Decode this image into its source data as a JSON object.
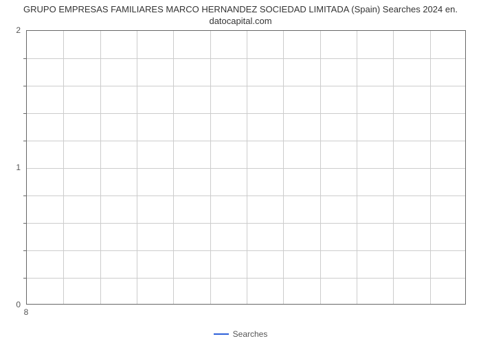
{
  "chart": {
    "type": "line",
    "title_line1": "GRUPO EMPRESAS FAMILIARES MARCO HERNANDEZ SOCIEDAD LIMITADA (Spain) Searches 2024 en.",
    "title_line2": "datocapital.com",
    "title_fontsize": 13,
    "title_color": "#333333",
    "background_color": "#ffffff",
    "plot_border_color": "#666666",
    "grid_color": "#cccccc",
    "axis_label_color": "#555555",
    "axis_label_fontsize": 12,
    "y": {
      "min": 0,
      "max": 2,
      "major_ticks": [
        0,
        1,
        2
      ],
      "minor_count_between": 4,
      "grid_rows": 10
    },
    "x": {
      "tick_labels": [
        "8"
      ],
      "grid_cols": 12
    },
    "series": [
      {
        "name": "Searches",
        "color": "#2b5fd9",
        "line_width": 2,
        "points": []
      }
    ],
    "legend": {
      "position": "bottom-center",
      "items": [
        {
          "label": "Searches",
          "color": "#2b5fd9"
        }
      ]
    }
  }
}
